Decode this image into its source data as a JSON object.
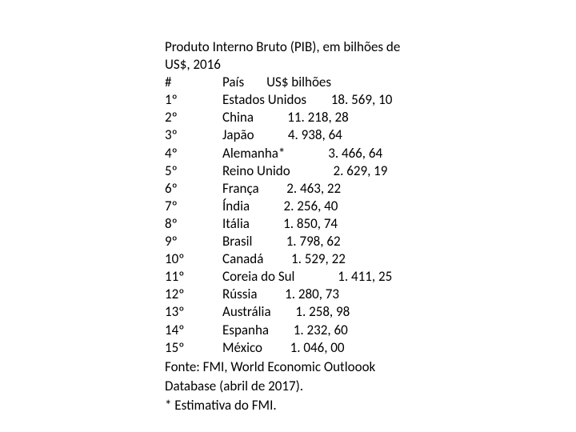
{
  "title_line1": "Produto Interno Bruto (PIB), em bilhões de",
  "title_line2": "US$, 2016",
  "header": {
    "rank": "#",
    "country": "País",
    "value_label": "US$ bilhões"
  },
  "rows": [
    {
      "rank": "1º",
      "country": "Estados Unidos",
      "value": "18. 569, 10"
    },
    {
      "rank": "2º",
      "country": "China",
      "value": "11. 218, 28"
    },
    {
      "rank": "3º",
      "country": "Japão",
      "value": "4. 938, 64"
    },
    {
      "rank": "4º",
      "country": "Alemanha*",
      "value": "3. 466, 64"
    },
    {
      "rank": "5º",
      "country": "Reino Unido",
      "value": "2. 629, 19"
    },
    {
      "rank": "6º",
      "country": "França",
      "value": "2. 463, 22"
    },
    {
      "rank": "7º",
      "country": "Índia",
      "value": "2. 256, 40"
    },
    {
      "rank": "8º",
      "country": "Itália",
      "value": "1. 850, 74"
    },
    {
      "rank": "9º",
      "country": "Brasil",
      "value": "1. 798, 62"
    },
    {
      "rank": "10º",
      "country": "Canadá",
      "value": "1. 529, 22"
    },
    {
      "rank": "11º",
      "country": "Coreia do Sul",
      "value": "1. 411, 25"
    },
    {
      "rank": "12º",
      "country": "Rússia",
      "value": "1. 280, 73"
    },
    {
      "rank": "13º",
      "country": "Austrália",
      "value": "1. 258, 98"
    },
    {
      "rank": "14º",
      "country": "Espanha",
      "value": "1. 232, 60"
    },
    {
      "rank": "15º",
      "country": "México",
      "value": "1. 046, 00"
    }
  ],
  "footer_line1": "Fonte: FMI, World Economic Outloook",
  "footer_line2": "Database (abril de 2017).",
  "footer_line3": "* Estimativa do FMI."
}
